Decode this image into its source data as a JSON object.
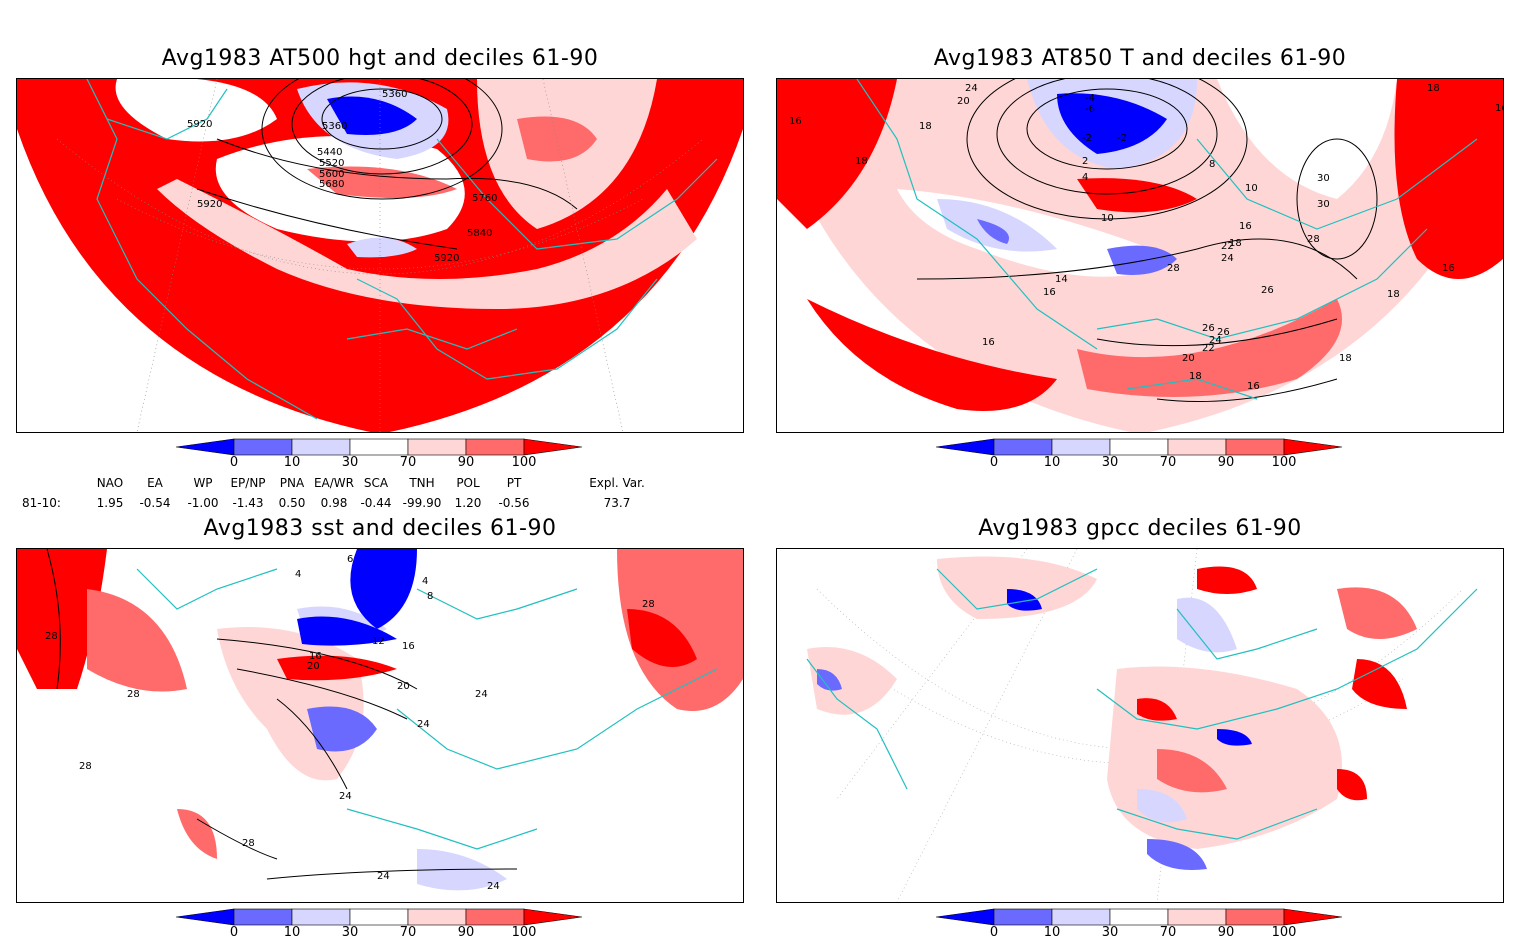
{
  "panels": [
    {
      "title": "Avg1983 AT500 hgt and deciles 61-90",
      "contour_labels": [
        "5920",
        "5920",
        "5360",
        "5360",
        "5440",
        "5520",
        "5600",
        "5680",
        "5760",
        "5840",
        "5920"
      ]
    },
    {
      "title": "Avg1983 AT850 T and deciles 61-90",
      "contour_labels": [
        "16",
        "18",
        "18",
        "20",
        "24",
        "-4",
        "-6",
        "-2",
        "-2",
        "2",
        "4",
        "8",
        "10",
        "10",
        "16",
        "14",
        "16",
        "26",
        "30",
        "30",
        "28",
        "18",
        "22",
        "24",
        "26",
        "28",
        "26",
        "24",
        "22",
        "20",
        "18",
        "16",
        "18",
        "16",
        "18",
        "16",
        "16",
        "18"
      ]
    },
    {
      "title": "Avg1983 sst and deciles 61-90",
      "contour_labels": [
        "28",
        "28",
        "28",
        "28",
        "4",
        "6",
        "4",
        "8",
        "12",
        "16",
        "20",
        "20",
        "16",
        "24",
        "24",
        "24",
        "28",
        "24",
        "24"
      ]
    },
    {
      "title": "Avg1983 gpcc deciles 61-90",
      "contour_labels": []
    }
  ],
  "colorbar": {
    "labels": [
      "0",
      "10",
      "30",
      "70",
      "90",
      "100"
    ],
    "colors": [
      "#0000ff",
      "#6a6aff",
      "#d6d6ff",
      "#ffffff",
      "#ffd6d6",
      "#ff6a6a",
      "#ff0000"
    ]
  },
  "indices": {
    "row_label": "81-10:",
    "columns": [
      {
        "name": "NAO",
        "value": "1.95"
      },
      {
        "name": "EA",
        "value": "-0.54"
      },
      {
        "name": "WP",
        "value": "-1.00"
      },
      {
        "name": "EP/NP",
        "value": "-1.43"
      },
      {
        "name": "PNA",
        "value": "0.50"
      },
      {
        "name": "EA/WR",
        "value": "0.98"
      },
      {
        "name": "SCA",
        "value": "-0.44"
      },
      {
        "name": "TNH",
        "value": "-99.90"
      },
      {
        "name": "POL",
        "value": "1.20"
      },
      {
        "name": "PT",
        "value": "-0.56"
      },
      {
        "name": "Expl. Var.",
        "value": "73.7"
      }
    ]
  }
}
